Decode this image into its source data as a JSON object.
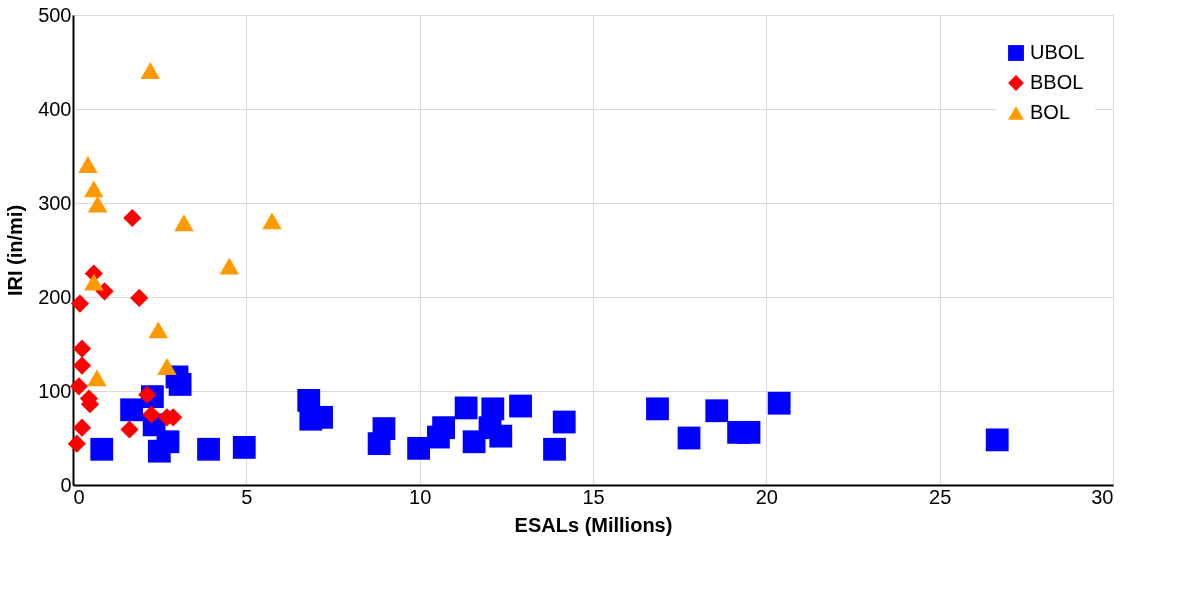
{
  "chart_data": {
    "type": "scatter",
    "xlabel": "ESALs (Millions)",
    "ylabel": "IRI (in/mi)",
    "xlim": [
      0,
      30
    ],
    "xticks": [
      0,
      5,
      10,
      15,
      20,
      25,
      30
    ],
    "ylim": [
      0,
      500
    ],
    "yticks": [
      0,
      100,
      200,
      300,
      400,
      500
    ],
    "grid": true,
    "legend": "top right",
    "series": [
      {
        "name": "UBOL",
        "color": "#0000ff",
        "marker": "square",
        "x": [
          0.83,
          1.69,
          2.29,
          2.34,
          2.49,
          2.74,
          3.0,
          3.09,
          3.91,
          4.94,
          6.8,
          6.86,
          7.17,
          8.97,
          8.83,
          9.97,
          10.69,
          10.54,
          11.34,
          11.57,
          12.11,
          12.03,
          12.34,
          12.91,
          14.17,
          13.89,
          16.86,
          17.77,
          18.57,
          19.2,
          19.5,
          20.37,
          26.66
        ],
        "values": [
          38,
          80,
          94,
          64,
          36,
          46,
          115,
          107,
          38,
          40,
          90,
          70,
          72,
          60,
          44,
          39,
          61,
          51,
          82,
          46,
          81,
          61,
          52,
          84,
          67,
          38,
          81,
          50,
          79,
          56,
          56,
          87,
          48
        ]
      },
      {
        "name": "BBOL",
        "color": "#ff0000",
        "marker": "diamond",
        "x": [
          1.71,
          0.6,
          0.91,
          1.91,
          0.2,
          0.26,
          0.26,
          0.17,
          0.46,
          0.49,
          2.14,
          2.26,
          2.71,
          2.89,
          1.63,
          0.26,
          0.11
        ],
        "values": [
          284,
          225,
          206,
          199,
          193,
          145,
          127,
          105,
          92,
          86,
          96,
          75,
          72,
          72,
          59,
          61,
          44
        ]
      },
      {
        "name": "BOL",
        "color": "#ff9900",
        "marker": "triangle",
        "x": [
          2.23,
          0.43,
          0.6,
          0.71,
          3.2,
          5.74,
          4.51,
          0.6,
          2.46,
          2.71,
          0.69
        ],
        "values": [
          441,
          341,
          315,
          299,
          279,
          281,
          233,
          216,
          165,
          126,
          114
        ]
      }
    ]
  }
}
